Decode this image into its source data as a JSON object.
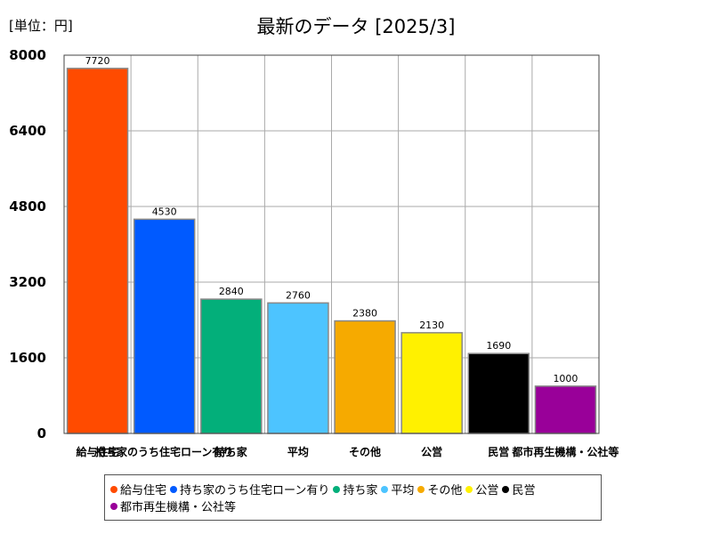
{
  "header": {
    "unit_label": "[単位：円]",
    "title": "最新のデータ [2025/3]"
  },
  "chart_data": {
    "type": "bar",
    "title": "最新のデータ [2025/3]",
    "unit": "[単位：円]",
    "xlabel": "",
    "ylabel": "",
    "ylim": [
      0,
      8000
    ],
    "yticks": [
      0,
      1600,
      3200,
      4800,
      6400,
      8000
    ],
    "grid": true,
    "legend_position": "bottom",
    "categories": [
      "給与住宅",
      "持ち家のうち住宅ローン有り",
      "持ち家",
      "平均",
      "その他",
      "公営",
      "民営",
      "都市再生機構・公社等"
    ],
    "values": [
      7720,
      4530,
      2840,
      2760,
      2380,
      2130,
      1690,
      1000
    ],
    "colors": [
      "#ff4b00",
      "#005aff",
      "#03af7a",
      "#4dc4ff",
      "#f6aa00",
      "#fff100",
      "#000000",
      "#990099"
    ]
  }
}
